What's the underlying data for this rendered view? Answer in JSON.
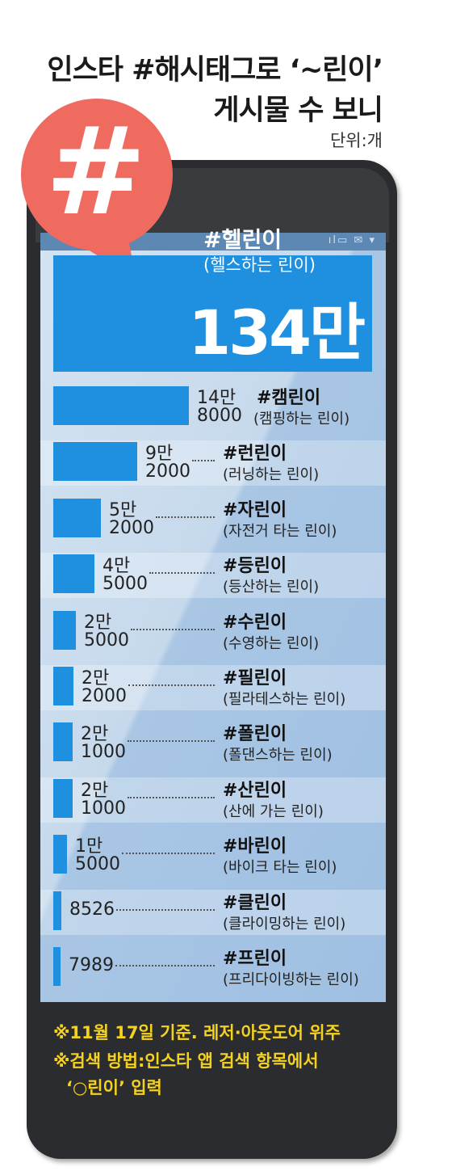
{
  "header": {
    "title_line1": "인스타 #해시태그로 ‘~린이’",
    "title_line2": "게시물 수 보니",
    "unit": "단위:개"
  },
  "icon": {
    "symbol": "#",
    "name": "hashtag-bubble-icon",
    "color": "#ef6a5f"
  },
  "status_icons": "ıl▭ ✉ ▾",
  "colors": {
    "bar": "#1f8fe0",
    "phone": "#2b2c2f",
    "note": "#f4d21f"
  },
  "chart_data": {
    "type": "bar",
    "orientation": "horizontal",
    "unit": "개",
    "items": [
      {
        "name": "#헬린이",
        "desc": "(헬스하는 린이)",
        "value": 1340000,
        "label": "134만"
      },
      {
        "name": "#캠린이",
        "desc": "(캠핑하는 린이)",
        "value": 148000,
        "label1": "14만",
        "label2": "8000"
      },
      {
        "name": "#런린이",
        "desc": "(러닝하는 린이)",
        "value": 92000,
        "label1": "9만",
        "label2": "2000"
      },
      {
        "name": "#자린이",
        "desc": "(자전거 타는 린이)",
        "value": 52000,
        "label1": "5만",
        "label2": "2000"
      },
      {
        "name": "#등린이",
        "desc": "(등산하는 린이)",
        "value": 45000,
        "label1": "4만",
        "label2": "5000"
      },
      {
        "name": "#수린이",
        "desc": "(수영하는 린이)",
        "value": 25000,
        "label1": "2만",
        "label2": "5000"
      },
      {
        "name": "#필린이",
        "desc": "(필라테스하는 린이)",
        "value": 22000,
        "label1": "2만",
        "label2": "2000"
      },
      {
        "name": "#폴린이",
        "desc": "(폴댄스하는 린이)",
        "value": 21000,
        "label1": "2만",
        "label2": "1000"
      },
      {
        "name": "#산린이",
        "desc": "(산에 가는 린이)",
        "value": 21000,
        "label1": "2만",
        "label2": "1000"
      },
      {
        "name": "#바린이",
        "desc": "(바이크 타는 린이)",
        "value": 15000,
        "label1": "1만",
        "label2": "5000"
      },
      {
        "name": "#클린이",
        "desc": "(클라이밍하는 린이)",
        "value": 8526,
        "label1": "",
        "label2": "8526"
      },
      {
        "name": "#프린이",
        "desc": "(프리다이빙하는 린이)",
        "value": 7989,
        "label1": "",
        "label2": "7989"
      }
    ]
  },
  "notes": {
    "line1": "※11월 17일 기준. 레저·아웃도어 위주",
    "line2": "※검색 방법:인스타 앱 검색 항목에서",
    "line3": "‘○린이’ 입력"
  }
}
